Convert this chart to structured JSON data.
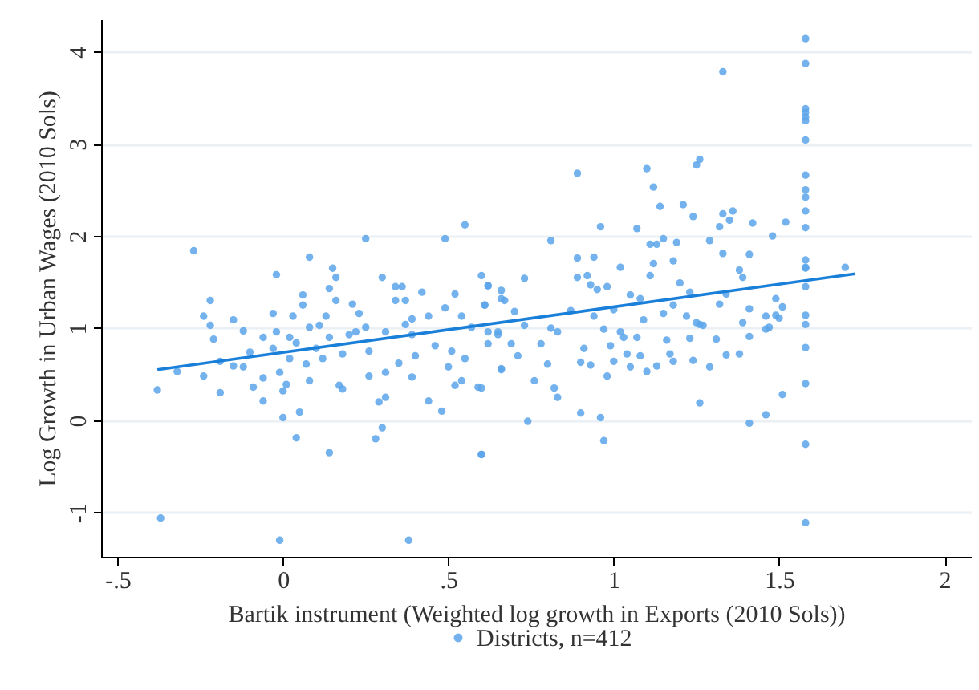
{
  "chart_data": {
    "type": "scatter",
    "xlabel": "Bartik instrument (Weighted log growth in Exports (2010 Sols))",
    "ylabel": "Log Growth in Urban Wages (2010 Sols)",
    "xlim": [
      -0.55,
      2.08
    ],
    "ylim": [
      -1.48,
      4.35
    ],
    "xticks": [
      {
        "value": -0.5,
        "label": "-.5"
      },
      0,
      {
        "value": 0.5,
        "label": ".5"
      },
      1,
      1.5,
      2
    ],
    "yticks": [
      -1,
      0,
      1,
      2,
      3,
      4
    ],
    "grid": "y",
    "legend": "bottom",
    "series": [
      {
        "name": "Districts, n=412",
        "marker": "circle",
        "color": "#5aa5ea",
        "x": [
          -0.38,
          -0.37,
          -0.27,
          -0.32,
          -0.24,
          -0.22,
          -0.22,
          -0.24,
          -0.21,
          -0.19,
          -0.19,
          -0.15,
          -0.15,
          -0.12,
          -0.12,
          -0.09,
          -0.1,
          -0.06,
          -0.06,
          -0.06,
          -0.03,
          -0.03,
          -0.02,
          -0.02,
          -0.01,
          0.0,
          0.0,
          -0.01,
          0.01,
          0.02,
          0.02,
          0.03,
          0.04,
          0.05,
          0.04,
          0.06,
          0.06,
          0.07,
          0.08,
          0.08,
          0.08,
          0.1,
          0.11,
          0.12,
          0.13,
          0.14,
          0.14,
          0.14,
          0.15,
          0.16,
          0.16,
          0.17,
          0.18,
          0.18,
          0.2,
          0.21,
          0.22,
          0.23,
          0.25,
          0.25,
          0.26,
          0.26,
          0.28,
          0.29,
          0.3,
          0.3,
          0.31,
          0.31,
          0.31,
          0.34,
          0.34,
          0.35,
          0.36,
          0.37,
          0.37,
          0.38,
          0.39,
          0.39,
          0.4,
          0.39,
          0.42,
          0.44,
          0.44,
          0.46,
          0.48,
          0.49,
          0.49,
          0.5,
          0.51,
          0.52,
          0.52,
          0.54,
          0.55,
          0.55,
          0.54,
          0.57,
          0.6,
          0.6,
          0.6,
          0.61,
          0.62,
          0.62,
          0.65,
          0.66,
          0.66,
          0.67,
          0.61,
          0.6,
          0.59,
          0.62,
          0.62,
          0.66,
          0.66,
          0.65,
          0.69,
          0.7,
          0.71,
          0.73,
          0.73,
          0.74,
          0.76,
          0.78,
          0.8,
          0.81,
          0.81,
          0.83,
          0.82,
          0.83,
          0.87,
          0.89,
          0.89,
          0.89,
          0.9,
          0.9,
          0.91,
          0.92,
          0.93,
          0.93,
          0.94,
          0.94,
          0.95,
          0.96,
          0.96,
          0.97,
          0.97,
          0.98,
          0.98,
          0.99,
          1.0,
          1.0,
          1.02,
          1.02,
          1.03,
          1.04,
          1.05,
          1.05,
          1.07,
          1.07,
          1.08,
          1.08,
          1.09,
          1.1,
          1.1,
          1.11,
          1.11,
          1.12,
          1.12,
          1.13,
          1.13,
          1.14,
          1.15,
          1.15,
          1.16,
          1.17,
          1.18,
          1.18,
          1.18,
          1.19,
          1.2,
          1.21,
          1.22,
          1.23,
          1.23,
          1.24,
          1.24,
          1.25,
          1.25,
          1.26,
          1.26,
          1.26,
          1.27,
          1.29,
          1.29,
          1.31,
          1.32,
          1.32,
          1.33,
          1.33,
          1.33,
          1.34,
          1.34,
          1.35,
          1.36,
          1.38,
          1.38,
          1.39,
          1.39,
          1.41,
          1.41,
          1.41,
          1.41,
          1.42,
          1.46,
          1.46,
          1.46,
          1.47,
          1.48,
          1.49,
          1.49,
          1.5,
          1.51,
          1.51,
          1.52,
          1.58,
          1.58,
          1.58,
          1.58,
          1.58,
          1.58,
          1.58,
          1.58,
          1.58,
          1.58,
          1.58,
          1.58,
          1.58,
          1.58,
          1.58,
          1.58,
          1.58,
          1.58,
          1.58,
          1.58,
          1.58,
          1.58,
          1.7
        ],
        "values": [
          0.33,
          -1.06,
          1.84,
          0.53,
          1.13,
          1.3,
          1.03,
          0.48,
          0.88,
          0.3,
          0.64,
          1.09,
          0.59,
          0.97,
          0.58,
          0.36,
          0.74,
          0.21,
          0.46,
          0.9,
          1.16,
          0.78,
          1.58,
          0.96,
          0.52,
          0.03,
          0.32,
          -1.3,
          0.39,
          0.67,
          0.9,
          1.13,
          0.84,
          0.09,
          -0.19,
          1.36,
          1.25,
          0.61,
          1.77,
          1.01,
          0.43,
          0.78,
          1.03,
          0.67,
          1.13,
          0.9,
          1.43,
          -0.35,
          1.65,
          1.3,
          1.55,
          0.38,
          0.34,
          0.72,
          0.93,
          1.26,
          0.96,
          1.16,
          1.01,
          1.97,
          0.48,
          0.75,
          -0.2,
          0.2,
          -0.08,
          1.55,
          0.96,
          0.25,
          0.52,
          1.3,
          1.45,
          0.62,
          1.45,
          1.04,
          1.3,
          -1.3,
          0.93,
          0.47,
          0.7,
          1.1,
          1.39,
          0.21,
          1.13,
          0.81,
          0.1,
          1.22,
          1.97,
          0.58,
          0.75,
          0.38,
          1.37,
          1.13,
          2.12,
          0.67,
          0.43,
          1.01,
          0.35,
          -0.37,
          1.57,
          1.25,
          0.83,
          1.46,
          0.96,
          1.41,
          0.55,
          1.3,
          1.25,
          -0.37,
          0.36,
          1.46,
          0.96,
          1.32,
          0.56,
          0.93,
          0.83,
          1.18,
          0.7,
          1.54,
          1.03,
          -0.01,
          0.43,
          0.83,
          0.61,
          1.95,
          1.0,
          0.25,
          0.35,
          0.96,
          1.19,
          2.68,
          1.76,
          1.55,
          0.08,
          0.63,
          0.78,
          1.57,
          1.47,
          0.6,
          1.77,
          1.13,
          1.42,
          2.1,
          0.03,
          -0.22,
          0.99,
          0.48,
          1.45,
          0.81,
          0.64,
          1.2,
          1.66,
          0.96,
          0.9,
          0.72,
          0.58,
          1.36,
          0.9,
          2.08,
          0.7,
          1.32,
          1.09,
          0.53,
          2.73,
          1.91,
          1.57,
          2.53,
          1.7,
          0.59,
          1.91,
          2.32,
          1.97,
          1.16,
          0.87,
          0.72,
          1.73,
          1.25,
          0.64,
          1.93,
          1.49,
          2.34,
          1.13,
          0.89,
          1.39,
          0.65,
          2.21,
          1.06,
          2.77,
          0.19,
          2.83,
          1.04,
          1.03,
          1.95,
          0.58,
          0.88,
          2.1,
          1.26,
          3.78,
          2.24,
          1.81,
          1.37,
          0.71,
          2.17,
          2.27,
          0.72,
          1.63,
          1.06,
          1.55,
          -0.03,
          1.8,
          0.91,
          1.21,
          2.14,
          0.06,
          0.99,
          1.13,
          1.01,
          2.0,
          1.32,
          1.14,
          1.11,
          0.28,
          1.23,
          2.15,
          4.14,
          3.87,
          3.38,
          3.34,
          3.29,
          3.25,
          3.04,
          2.66,
          2.5,
          2.42,
          2.27,
          2.09,
          1.74,
          1.66,
          1.65,
          1.45,
          1.14,
          1.04,
          0.79,
          0.4,
          -0.26,
          -1.11,
          1.66
        ]
      },
      {
        "type": "line",
        "color": "#1a7fd9",
        "x": [
          -0.38,
          1.73
        ],
        "values": [
          0.55,
          1.59
        ]
      }
    ]
  }
}
